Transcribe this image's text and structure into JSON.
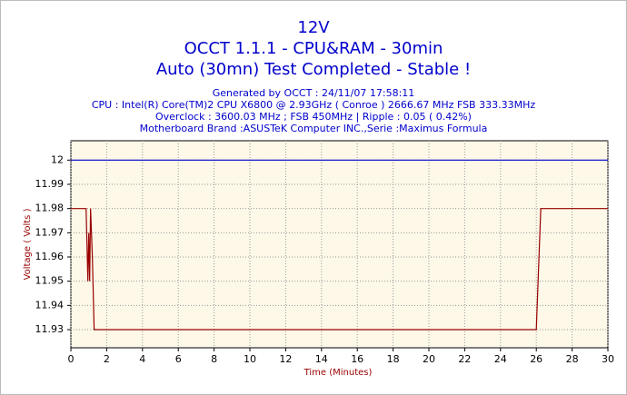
{
  "chart_data": {
    "type": "line",
    "title": [
      "12V",
      "OCCT 1.1.1 - CPU&RAM - 30min",
      "Auto (30mn) Test Completed - Stable !"
    ],
    "subtitle": [
      "Generated by OCCT : 24/11/07 17:58:11",
      "CPU : Intel(R) Core(TM)2 CPU X6800 @ 2.93GHz ( Conroe ) 2666.67 MHz FSB 333.33MHz",
      "Overclock : 3600.03 MHz ; FSB 450MHz | Ripple : 0.05 ( 0.42%)",
      "Motherboard Brand :ASUSTeK Computer INC.,Serie :Maximus Formula"
    ],
    "x_label": "Time (Minutes)",
    "y_label": "Voltage ( Volts )",
    "series": [
      {
        "color": "#0000cc",
        "x": [
          0,
          30
        ],
        "values": [
          12,
          12
        ]
      },
      {
        "color": "#990000",
        "x": [
          0,
          0.85,
          0.95,
          1.0,
          1.05,
          1.1,
          1.2,
          1.3,
          26.0,
          26.05,
          26.15,
          26.25,
          30
        ],
        "values": [
          11.98,
          11.98,
          11.95,
          11.97,
          11.95,
          11.98,
          11.96,
          11.93,
          11.93,
          11.94,
          11.96,
          11.98,
          11.98
        ]
      }
    ],
    "xlim": [
      0,
      30
    ],
    "xticks": [
      0,
      2,
      4,
      6,
      8,
      10,
      12,
      14,
      16,
      18,
      20,
      22,
      24,
      26,
      28,
      30
    ],
    "ylim": [
      11.9225,
      12.008
    ],
    "yticks": [
      11.93,
      11.94,
      11.95,
      11.96,
      11.97,
      11.98,
      11.99,
      12
    ],
    "grid": true
  }
}
